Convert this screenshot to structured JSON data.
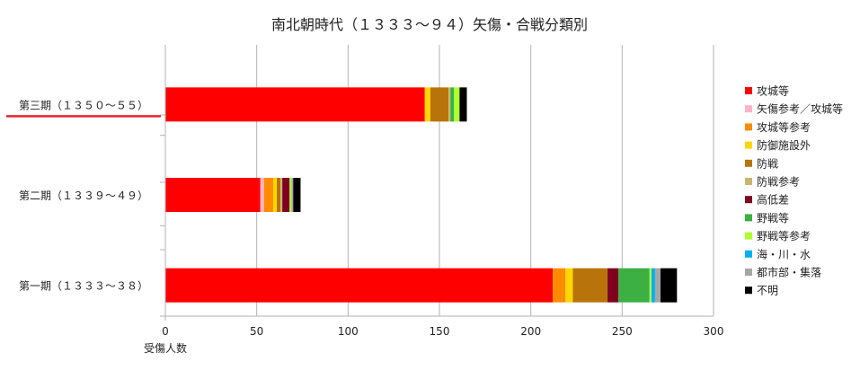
{
  "chart_data": {
    "type": "bar",
    "orientation": "horizontal",
    "stacked": true,
    "title": "南北朝時代（１３３３～９４）矢傷・合戦分類別",
    "xlabel": "受傷人数",
    "ylabel": "",
    "xlim": [
      0,
      300
    ],
    "xticks": [
      0,
      50,
      100,
      150,
      200,
      250,
      300
    ],
    "grid": true,
    "legend_position": "right",
    "categories": [
      "第三期（１３５０～５５）",
      "第二期（１３３９～４９）",
      "第一期（１３３３～３８）"
    ],
    "highlighted_category": "第三期（１３５０～５５）",
    "highlight_color": "#e8202a",
    "series": [
      {
        "name": "攻城等",
        "color": "#ff0000",
        "values": [
          142,
          52,
          212
        ]
      },
      {
        "name": "矢傷参考／攻城等",
        "color": "#ffb3c6",
        "values": [
          0,
          2,
          0
        ]
      },
      {
        "name": "攻城等参考",
        "color": "#ff8c00",
        "values": [
          0,
          5,
          7
        ]
      },
      {
        "name": "防御施設外",
        "color": "#ffd700",
        "values": [
          3,
          2,
          4
        ]
      },
      {
        "name": "防戦",
        "color": "#b8740a",
        "values": [
          10,
          2,
          19
        ]
      },
      {
        "name": "防戦参考",
        "color": "#c8b86e",
        "values": [
          1,
          1,
          0
        ]
      },
      {
        "name": "高低差",
        "color": "#800020",
        "values": [
          0,
          4,
          6
        ]
      },
      {
        "name": "野戦等",
        "color": "#3cb043",
        "values": [
          2,
          0,
          17
        ]
      },
      {
        "name": "野戦等参考",
        "color": "#adff2f",
        "values": [
          3,
          1,
          1
        ]
      },
      {
        "name": "海・川・水",
        "color": "#00b0f0",
        "values": [
          0,
          0,
          2
        ]
      },
      {
        "name": "都市部・集落",
        "color": "#a6a6a6",
        "values": [
          0,
          1,
          3
        ]
      },
      {
        "name": "不明",
        "color": "#000000",
        "values": [
          4,
          4,
          9
        ]
      }
    ]
  }
}
